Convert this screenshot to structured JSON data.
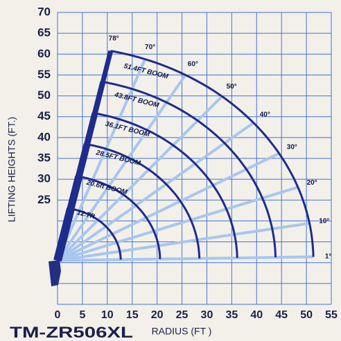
{
  "chart_data": {
    "type": "boom-range",
    "model": "TM-ZR506XL",
    "x_label": "RADIUS (FT )",
    "y_label": "LIFTING HEIGHTS (FT.)",
    "xlim": [
      0,
      55
    ],
    "ylim": [
      0,
      70
    ],
    "xticks": [
      0,
      5,
      10,
      15,
      20,
      25,
      30,
      35,
      40,
      45,
      50,
      55
    ],
    "yticks": [
      {
        "value": 0,
        "label": null
      },
      {
        "value": 5,
        "label": null
      },
      {
        "value": 10,
        "label": null
      },
      {
        "value": 15,
        "label": null
      },
      {
        "value": 20,
        "label": null
      },
      25,
      30,
      35,
      40,
      45,
      50,
      55,
      60,
      65,
      70
    ],
    "grid": true,
    "grid_color": "#3f74d6",
    "arc_color": "#1e2c8c",
    "ray_color": "#a8c6ee",
    "pivot": {
      "radius": 0,
      "height": 10.5
    },
    "booms": [
      {
        "length": 12.7,
        "label": "12.7ft"
      },
      {
        "length": 20.6,
        "label": "20.6ft BOOM"
      },
      {
        "length": 28.5,
        "label": "28.5FT BOOM"
      },
      {
        "length": 36.1,
        "label": "36.1FT BOOM"
      },
      {
        "length": 43.8,
        "label": "43.8FT BOOM"
      },
      {
        "length": 51.4,
        "label": "51.4FT BOOM"
      }
    ],
    "angles": [
      {
        "value": 78,
        "label": "78°"
      },
      {
        "value": 70,
        "label": "70°"
      },
      {
        "value": 60,
        "label": "60°"
      },
      {
        "value": 50,
        "label": "50°"
      },
      {
        "value": 40,
        "label": "40°"
      },
      {
        "value": 30,
        "label": "30°"
      },
      {
        "value": 20,
        "label": "20°"
      },
      {
        "value": 10,
        "label": "10°"
      },
      {
        "value": 1,
        "label": "1°"
      }
    ]
  }
}
